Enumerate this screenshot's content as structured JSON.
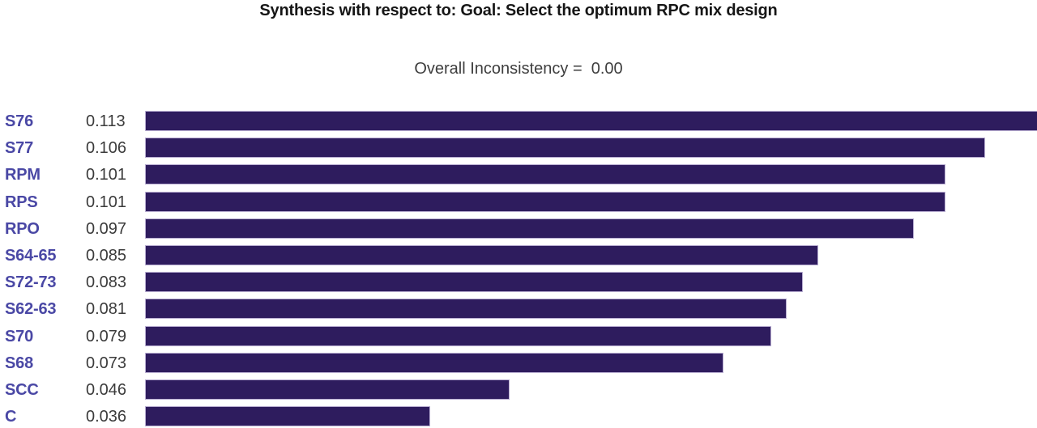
{
  "header": {
    "title": "Synthesis with respect to: Goal: Select the optimum RPC mix design",
    "subtitle": "Overall Inconsistency =  0.00"
  },
  "chart_data": {
    "type": "bar",
    "orientation": "horizontal",
    "title": "Synthesis with respect to: Goal: Select the optimum RPC mix design",
    "annotation": "Overall Inconsistency =  0.00",
    "categories": [
      "S76",
      "S77",
      "RPM",
      "RPS",
      "RPO",
      "S64-65",
      "S72-73",
      "S62-63",
      "S70",
      "S68",
      "SCC",
      "C"
    ],
    "values": [
      0.113,
      0.106,
      0.101,
      0.101,
      0.097,
      0.085,
      0.083,
      0.081,
      0.079,
      0.073,
      0.046,
      0.036
    ],
    "value_labels": [
      "0.113",
      "0.106",
      "0.101",
      "0.101",
      "0.097",
      "0.085",
      "0.083",
      "0.081",
      "0.079",
      "0.073",
      "0.046",
      "0.036"
    ],
    "xlim": [
      0,
      0.113
    ],
    "grid": false,
    "legend": false,
    "colors": {
      "bar_fill": "#2e1c5e",
      "bar_border": "#b8add1",
      "category_label": "#4a48a5",
      "value_label": "#3b3b3b",
      "title_text": "#161616",
      "subtitle_text": "#3e3e3e",
      "background": "#ffffff"
    }
  }
}
